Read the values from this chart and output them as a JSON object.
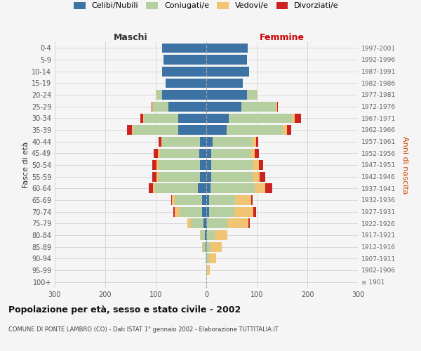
{
  "age_groups": [
    "100+",
    "95-99",
    "90-94",
    "85-89",
    "80-84",
    "75-79",
    "70-74",
    "65-69",
    "60-64",
    "55-59",
    "50-54",
    "45-49",
    "40-44",
    "35-39",
    "30-34",
    "25-29",
    "20-24",
    "15-19",
    "10-14",
    "5-9",
    "0-4"
  ],
  "birth_years": [
    "≤ 1901",
    "1902-1906",
    "1907-1911",
    "1912-1916",
    "1917-1921",
    "1922-1926",
    "1927-1931",
    "1932-1936",
    "1937-1941",
    "1942-1946",
    "1947-1951",
    "1952-1956",
    "1957-1961",
    "1962-1966",
    "1967-1971",
    "1972-1976",
    "1977-1981",
    "1982-1986",
    "1987-1991",
    "1992-1996",
    "1997-2001"
  ],
  "maschi": {
    "celibi": [
      0,
      0,
      0,
      2,
      3,
      5,
      8,
      8,
      16,
      12,
      12,
      14,
      12,
      55,
      55,
      75,
      88,
      80,
      88,
      85,
      88
    ],
    "coniugati": [
      0,
      0,
      2,
      5,
      8,
      25,
      45,
      55,
      85,
      82,
      82,
      78,
      75,
      90,
      68,
      30,
      10,
      0,
      0,
      0,
      0
    ],
    "vedovi": [
      0,
      0,
      0,
      2,
      2,
      8,
      10,
      5,
      5,
      5,
      5,
      4,
      2,
      2,
      2,
      2,
      2,
      0,
      0,
      0,
      0
    ],
    "divorziati": [
      0,
      0,
      0,
      0,
      0,
      0,
      2,
      2,
      8,
      8,
      8,
      8,
      5,
      10,
      5,
      2,
      0,
      0,
      0,
      0,
      0
    ]
  },
  "femmine": {
    "nubili": [
      0,
      0,
      0,
      0,
      2,
      2,
      5,
      5,
      8,
      10,
      10,
      10,
      12,
      40,
      45,
      70,
      80,
      72,
      85,
      80,
      82
    ],
    "coniugate": [
      0,
      2,
      5,
      8,
      15,
      40,
      50,
      52,
      88,
      82,
      82,
      78,
      78,
      112,
      125,
      68,
      22,
      0,
      0,
      0,
      0
    ],
    "vedove": [
      0,
      5,
      15,
      22,
      25,
      42,
      38,
      32,
      20,
      14,
      12,
      8,
      8,
      8,
      5,
      2,
      0,
      0,
      0,
      0,
      0
    ],
    "divorziate": [
      0,
      0,
      0,
      0,
      0,
      2,
      5,
      2,
      15,
      10,
      8,
      8,
      5,
      8,
      12,
      2,
      0,
      0,
      0,
      0,
      0
    ]
  },
  "color_celibi": "#3d72a4",
  "color_coniugati": "#b5cfa0",
  "color_vedovi": "#f0c472",
  "color_divorziati": "#cc2222",
  "xlim": 300,
  "title": "Popolazione per età, sesso e stato civile - 2002",
  "subtitle": "COMUNE DI PONTE LAMBRO (CO) - Dati ISTAT 1° gennaio 2002 - Elaborazione TUTTITALIA.IT",
  "ylabel_left": "Fasce di età",
  "ylabel_right": "Anni di nascita",
  "xlabel_maschi": "Maschi",
  "xlabel_femmine": "Femmine",
  "bg_color": "#f5f5f5",
  "grid_color": "#cccccc",
  "legend_labels": [
    "Celibi/Nubili",
    "Coniugati/e",
    "Vedovi/e",
    "Divorziati/e"
  ]
}
